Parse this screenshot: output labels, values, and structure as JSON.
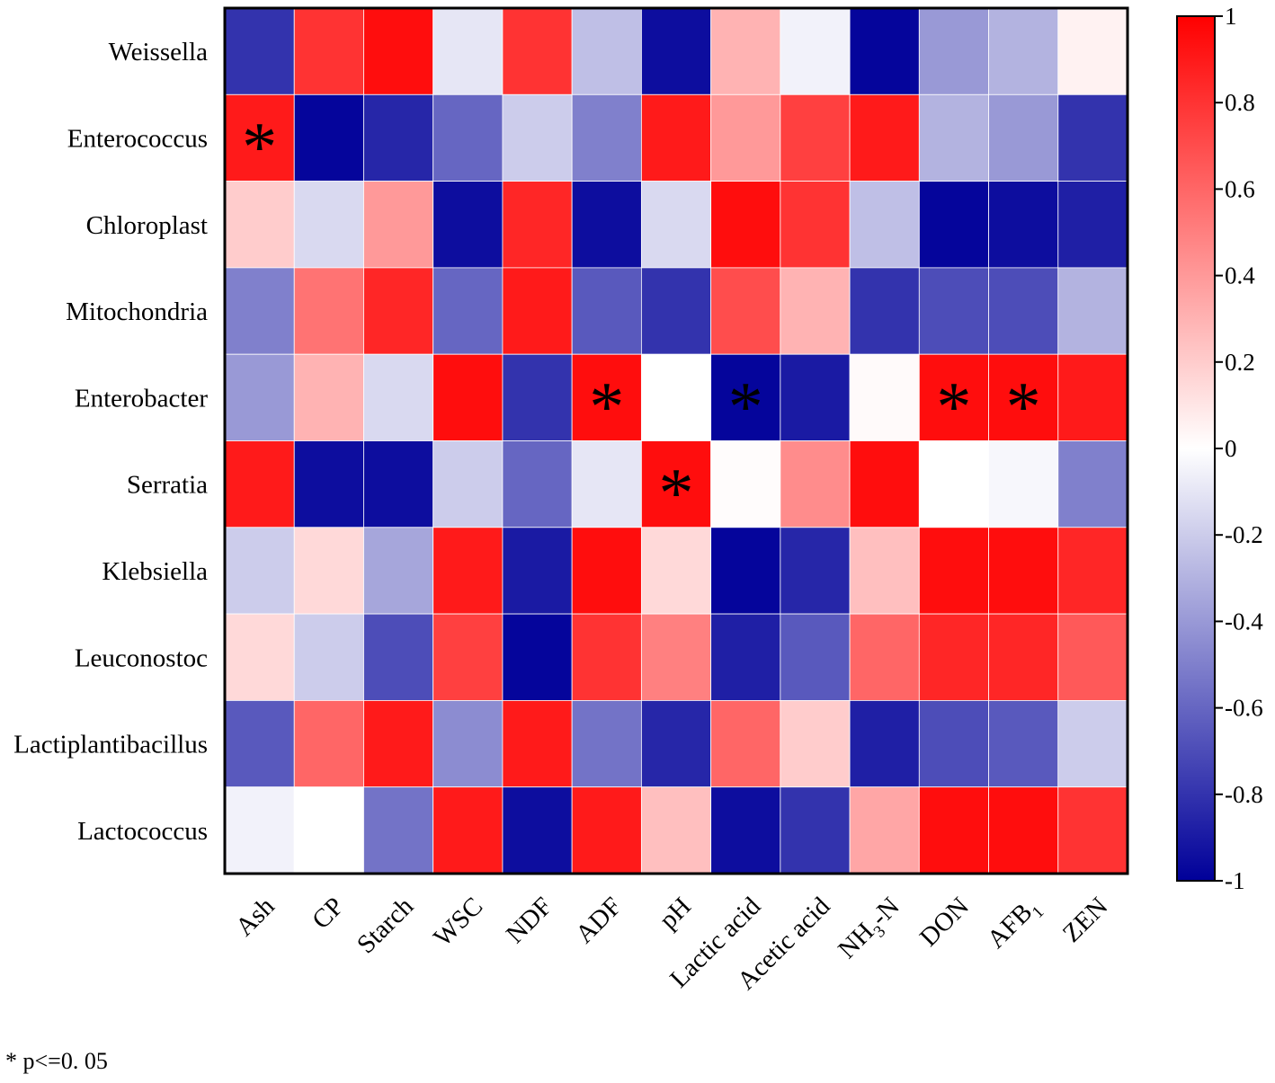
{
  "chart_data": {
    "type": "heatmap",
    "title": "",
    "rows": [
      "Weissella",
      "Enterococcus",
      "Chloroplast",
      "Mitochondria",
      "Enterobacter",
      "Serratia",
      "Klebsiella",
      "Leuconostoc",
      "Lactiplantibacillus",
      "Lactococcus"
    ],
    "columns": [
      {
        "text": "Ash",
        "sub": ""
      },
      {
        "text": "CP",
        "sub": ""
      },
      {
        "text": "Starch",
        "sub": ""
      },
      {
        "text": "WSC",
        "sub": ""
      },
      {
        "text": "NDF",
        "sub": ""
      },
      {
        "text": "ADF",
        "sub": ""
      },
      {
        "text": "pH",
        "sub": ""
      },
      {
        "text": "Lactic acid",
        "sub": ""
      },
      {
        "text": "Acetic acid",
        "sub": ""
      },
      {
        "text": "NH3-N",
        "sub": "3"
      },
      {
        "text": "DON",
        "sub": ""
      },
      {
        "text": "AFB1",
        "sub": "1"
      },
      {
        "text": "ZEN",
        "sub": ""
      }
    ],
    "values": [
      [
        -0.8,
        0.8,
        0.95,
        -0.1,
        0.8,
        -0.25,
        -0.95,
        0.3,
        -0.05,
        -0.98,
        -0.4,
        -0.3,
        0.05
      ],
      [
        0.9,
        -0.98,
        -0.85,
        -0.6,
        -0.2,
        -0.5,
        0.9,
        0.4,
        0.75,
        0.9,
        -0.3,
        -0.4,
        -0.8
      ],
      [
        0.2,
        -0.15,
        0.4,
        -0.95,
        0.85,
        -0.95,
        -0.15,
        0.95,
        0.8,
        -0.25,
        -0.98,
        -0.95,
        -0.88
      ],
      [
        -0.5,
        0.55,
        0.85,
        -0.6,
        0.9,
        -0.65,
        -0.8,
        0.7,
        0.3,
        -0.8,
        -0.7,
        -0.7,
        -0.3
      ],
      [
        -0.4,
        0.3,
        -0.15,
        0.95,
        -0.8,
        0.95,
        0.0,
        -0.98,
        -0.9,
        0.02,
        0.95,
        0.95,
        0.9
      ],
      [
        0.9,
        -0.95,
        -0.95,
        -0.2,
        -0.6,
        -0.1,
        0.95,
        0.01,
        0.45,
        0.95,
        0.0,
        -0.03,
        -0.5
      ],
      [
        -0.2,
        0.15,
        -0.35,
        0.9,
        -0.9,
        0.95,
        0.15,
        -0.98,
        -0.85,
        0.25,
        0.95,
        0.95,
        0.85
      ],
      [
        0.15,
        -0.2,
        -0.7,
        0.75,
        -0.98,
        0.8,
        0.5,
        -0.88,
        -0.65,
        0.6,
        0.85,
        0.85,
        0.65
      ],
      [
        -0.65,
        0.6,
        0.9,
        -0.45,
        0.9,
        -0.55,
        -0.85,
        0.6,
        0.2,
        -0.88,
        -0.7,
        -0.65,
        -0.2
      ],
      [
        -0.05,
        0.0,
        -0.55,
        0.9,
        -0.95,
        0.9,
        0.25,
        -0.95,
        -0.8,
        0.35,
        0.95,
        0.95,
        0.8
      ]
    ],
    "significant": [
      [
        1,
        0
      ],
      [
        4,
        5
      ],
      [
        4,
        7
      ],
      [
        4,
        10
      ],
      [
        4,
        11
      ],
      [
        5,
        6
      ]
    ],
    "significance_marker": "*",
    "colorscale": {
      "min": -1,
      "mid": 0,
      "max": 1,
      "low_color": "#000099",
      "mid_color": "#ffffff",
      "high_color": "#ff0000"
    },
    "colorbar_ticks": [
      "1",
      "0.8",
      "0.6",
      "0.4",
      "0.2",
      "0",
      "-0.2",
      "-0.4",
      "-0.6",
      "-0.8",
      "-1"
    ],
    "colorbar_tick_values": [
      1,
      0.8,
      0.6,
      0.4,
      0.2,
      0,
      -0.2,
      -0.4,
      -0.6,
      -0.8,
      -1
    ]
  },
  "footnote": "*  p<=0. 05"
}
